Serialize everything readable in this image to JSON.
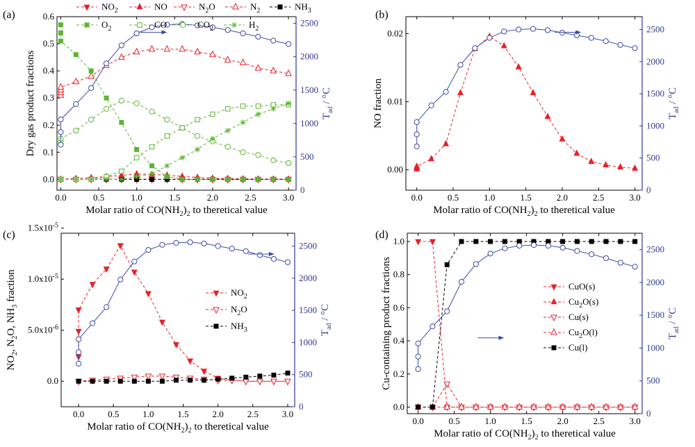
{
  "chart_data": [
    {
      "panel": "(a)",
      "type": "line",
      "xlabel": "Molar ratio of CO(NH2)2 to theretical value",
      "ylabel": "Dry gas product fractions",
      "y2label": "Tad / °C",
      "xlim": [
        -0.05,
        3.1
      ],
      "ylim": [
        -0.04,
        0.6
      ],
      "y2lim": [
        0,
        2600
      ],
      "xticks": [
        "0.0",
        "0.5",
        "1.0",
        "1.5",
        "2.0",
        "2.5",
        "3.0"
      ],
      "yticks": [
        "0.0",
        "0.1",
        "0.2",
        "0.3",
        "0.4",
        "0.5",
        "0.6"
      ],
      "y2ticks": [
        "0",
        "500",
        "1000",
        "1500",
        "2000",
        "2500"
      ],
      "series": [
        {
          "name": "NO2",
          "color": "#e8202a",
          "marker": "tri-down-filled",
          "x": [
            0,
            0.2,
            0.4,
            0.6,
            0.8,
            1.0,
            1.2,
            1.4,
            1.6,
            1.8,
            2.0,
            2.2,
            2.4,
            2.6,
            2.8,
            3.0
          ],
          "values": [
            0.0,
            0.0,
            0.0,
            0.0,
            0.0,
            0.0,
            0.0,
            0.0,
            0.0,
            0.0,
            0.0,
            0.0,
            0.0,
            0.0,
            0.0,
            0.0
          ]
        },
        {
          "name": "NO",
          "color": "#e8202a",
          "marker": "tri-up-filled",
          "x": [
            0,
            0.2,
            0.4,
            0.6,
            0.8,
            1.0,
            1.2,
            1.4,
            1.6,
            1.8,
            2.0,
            2.2,
            2.4,
            2.6,
            2.8,
            3.0
          ],
          "values": [
            0.001,
            0.003,
            0.006,
            0.01,
            0.015,
            0.02,
            0.018,
            0.015,
            0.011,
            0.007,
            0.004,
            0.003,
            0.002,
            0.001,
            0.001,
            0.001
          ]
        },
        {
          "name": "N2O",
          "color": "#e8202a",
          "marker": "tri-down-open",
          "x": [
            0,
            0.2,
            0.4,
            0.6,
            0.8,
            1.0,
            1.2,
            1.4,
            1.6,
            1.8,
            2.0,
            2.2,
            2.4,
            2.6,
            2.8,
            3.0
          ],
          "values": [
            0.0,
            0.0,
            0.0,
            0.0,
            0.0,
            0.0,
            0.0,
            0.0,
            0.0,
            0.0,
            0.0,
            0.0,
            0.0,
            0.0,
            0.0,
            0.0
          ]
        },
        {
          "name": "N2",
          "color": "#e8202a",
          "marker": "tri-up-open",
          "x": [
            0,
            0,
            0,
            0,
            0.2,
            0.4,
            0.6,
            0.8,
            1.0,
            1.2,
            1.4,
            1.6,
            1.8,
            2.0,
            2.2,
            2.4,
            2.6,
            2.8,
            3.0
          ],
          "values": [
            0.31,
            0.32,
            0.33,
            0.34,
            0.36,
            0.38,
            0.42,
            0.45,
            0.47,
            0.48,
            0.48,
            0.48,
            0.47,
            0.46,
            0.44,
            0.43,
            0.41,
            0.4,
            0.39
          ]
        },
        {
          "name": "NH3",
          "color": "#000000",
          "marker": "square-filled",
          "x": [
            0,
            0.2,
            0.4,
            0.6,
            0.8,
            1.0,
            1.2,
            1.4,
            1.6,
            1.8,
            2.0,
            2.2,
            2.4,
            2.6,
            2.8,
            3.0
          ],
          "values": [
            0.0,
            0.0,
            0.0,
            0.0,
            0.0,
            0.0,
            0.0,
            0.0,
            0.0,
            0.0,
            0.0,
            0.0,
            0.0,
            0.0,
            0.0,
            0.0
          ]
        },
        {
          "name": "O2",
          "color": "#5cb531",
          "marker": "square-filled",
          "x": [
            0,
            0,
            0,
            0.2,
            0.4,
            0.6,
            0.8,
            1.0,
            1.2,
            1.4,
            1.6,
            1.8,
            2.0,
            2.2,
            2.4,
            2.6,
            2.8,
            3.0
          ],
          "values": [
            0.57,
            0.54,
            0.51,
            0.46,
            0.4,
            0.3,
            0.21,
            0.11,
            0.05,
            0.01,
            0.0,
            0.0,
            0.0,
            0.0,
            0.0,
            0.0,
            0.0,
            0.0
          ]
        },
        {
          "name": "CO",
          "color": "#5cb531",
          "marker": "square-open",
          "x": [
            0,
            0.2,
            0.4,
            0.6,
            0.8,
            1.0,
            1.2,
            1.4,
            1.6,
            1.8,
            2.0,
            2.2,
            2.4,
            2.6,
            2.8,
            3.0
          ],
          "values": [
            0.0,
            0.0,
            0.0,
            0.01,
            0.03,
            0.08,
            0.12,
            0.16,
            0.19,
            0.22,
            0.24,
            0.26,
            0.27,
            0.27,
            0.275,
            0.275
          ]
        },
        {
          "name": "CO2",
          "color": "#5cb531",
          "marker": "circle-open",
          "x": [
            0,
            0,
            0,
            0.2,
            0.4,
            0.6,
            0.8,
            1.0,
            1.2,
            1.4,
            1.6,
            1.8,
            2.0,
            2.2,
            2.4,
            2.6,
            2.8,
            3.0
          ],
          "values": [
            0.13,
            0.14,
            0.15,
            0.18,
            0.22,
            0.26,
            0.29,
            0.28,
            0.25,
            0.22,
            0.19,
            0.16,
            0.14,
            0.12,
            0.1,
            0.09,
            0.07,
            0.06
          ]
        },
        {
          "name": "H2",
          "color": "#5cb531",
          "marker": "asterisk",
          "x": [
            0,
            0.2,
            0.4,
            0.6,
            0.8,
            1.0,
            1.2,
            1.4,
            1.6,
            1.8,
            2.0,
            2.2,
            2.4,
            2.6,
            2.8,
            3.0
          ],
          "values": [
            0.0,
            0.0,
            0.0,
            0.0,
            0.0,
            0.01,
            0.02,
            0.05,
            0.08,
            0.11,
            0.15,
            0.18,
            0.21,
            0.24,
            0.26,
            0.28
          ]
        },
        {
          "name": "Tad",
          "axis": "right",
          "color": "#3a4aa6",
          "marker": "circle-open",
          "x": [
            0,
            0,
            0,
            0.2,
            0.4,
            0.6,
            0.8,
            1.0,
            1.2,
            1.4,
            1.6,
            1.8,
            2.0,
            2.2,
            2.4,
            2.6,
            2.8,
            3.0
          ],
          "values": [
            680,
            870,
            1060,
            1290,
            1530,
            1900,
            2170,
            2350,
            2440,
            2480,
            2490,
            2470,
            2440,
            2400,
            2350,
            2300,
            2240,
            2190
          ]
        }
      ],
      "annotation": "arrow pointing to right axis"
    },
    {
      "panel": "(b)",
      "type": "line",
      "xlabel": "Molar ratio of CO(NH2)2 to theretical value",
      "ylabel": "NO fraction",
      "y2label": "Tad / °C",
      "xlim": [
        -0.15,
        3.1
      ],
      "ylim": [
        -0.003,
        0.0225
      ],
      "y2lim": [
        0,
        2700
      ],
      "xticks": [
        "0.0",
        "0.5",
        "1.0",
        "1.5",
        "2.0",
        "2.5",
        "3.0"
      ],
      "yticks": [
        "0.00",
        "0.01",
        "0.02"
      ],
      "y2ticks": [
        "0",
        "500",
        "1000",
        "1500",
        "2000",
        "2500"
      ],
      "series": [
        {
          "name": "NO",
          "color": "#e8202a",
          "marker": "tri-up-filled",
          "x": [
            0,
            0,
            0,
            0.2,
            0.4,
            0.6,
            0.8,
            1.0,
            1.2,
            1.4,
            1.6,
            1.8,
            2.0,
            2.2,
            2.4,
            2.6,
            2.8,
            3.0
          ],
          "values": [
            0.0001,
            0.0003,
            0.0005,
            0.0016,
            0.0038,
            0.0113,
            0.0178,
            0.0196,
            0.0182,
            0.0151,
            0.0113,
            0.0078,
            0.0045,
            0.0024,
            0.0012,
            0.0007,
            0.0004,
            0.0002
          ]
        },
        {
          "name": "Tad",
          "axis": "right",
          "color": "#3a4aa6",
          "marker": "circle-open",
          "x": [
            0,
            0,
            0,
            0.2,
            0.4,
            0.6,
            0.8,
            1.0,
            1.2,
            1.4,
            1.6,
            1.8,
            2.0,
            2.2,
            2.4,
            2.6,
            2.8,
            3.0
          ],
          "values": [
            680,
            870,
            1060,
            1320,
            1530,
            1950,
            2210,
            2370,
            2470,
            2500,
            2510,
            2490,
            2450,
            2410,
            2370,
            2320,
            2260,
            2210
          ]
        }
      ]
    },
    {
      "panel": "(c)",
      "type": "line",
      "xlabel": "Molar ratio of CO(NH2)2 to theretical value",
      "ylabel": "NO2, N2O, NH3 fraction",
      "y2label": "Tad / °C",
      "xlim": [
        -0.25,
        3.1
      ],
      "ylim": [
        -2.5e-06,
        1.45e-05
      ],
      "y2lim": [
        0,
        2700
      ],
      "xticks": [
        "0.0",
        "0.5",
        "1.0",
        "1.5",
        "2.0",
        "2.5",
        "3.0"
      ],
      "yticks": [
        "0.0",
        "5.0x10-6",
        "1.0x10-5",
        "1.5x10-5"
      ],
      "y2ticks": [
        "0",
        "500",
        "1000",
        "1500",
        "2000",
        "2500"
      ],
      "legend": [
        "NO2",
        "N2O",
        "NH3"
      ],
      "series": [
        {
          "name": "NO2",
          "color": "#e8202a",
          "marker": "tri-down-filled",
          "x": [
            0,
            0,
            0,
            0.2,
            0.4,
            0.6,
            0.8,
            1.0,
            1.2,
            1.4,
            1.6,
            1.8,
            2.0,
            2.2,
            2.4,
            2.6,
            2.8,
            3.0
          ],
          "values": [
            2.4e-06,
            4.9e-06,
            7e-06,
            9.5e-06,
            1.1e-05,
            1.33e-05,
            1.07e-05,
            8.6e-06,
            5.8e-06,
            3.6e-06,
            2e-06,
            1e-06,
            3e-07,
            1e-07,
            0,
            0,
            0,
            0
          ]
        },
        {
          "name": "N2O",
          "color": "#e8202a",
          "marker": "tri-down-open",
          "x": [
            0,
            0.2,
            0.4,
            0.6,
            0.8,
            1.0,
            1.2,
            1.4,
            1.6,
            1.8,
            2.0,
            2.2,
            2.4,
            2.6,
            2.8,
            3.0
          ],
          "values": [
            0,
            1e-07,
            2e-07,
            3e-07,
            4e-07,
            5e-07,
            5e-07,
            4e-07,
            3e-07,
            2e-07,
            1e-07,
            1e-07,
            0,
            0,
            0,
            0
          ]
        },
        {
          "name": "NH3",
          "color": "#000000",
          "marker": "square-filled",
          "x": [
            0,
            0.2,
            0.4,
            0.6,
            0.8,
            1.0,
            1.2,
            1.4,
            1.6,
            1.8,
            2.0,
            2.2,
            2.4,
            2.6,
            2.8,
            3.0
          ],
          "values": [
            0,
            0,
            0,
            0,
            0,
            0,
            0,
            1e-07,
            1e-07,
            1e-07,
            2e-07,
            3e-07,
            4e-07,
            5e-07,
            6e-07,
            8e-07
          ]
        },
        {
          "name": "Tad",
          "axis": "right",
          "color": "#3a4aa6",
          "marker": "circle-open",
          "x": [
            0,
            0,
            0,
            0.2,
            0.4,
            0.6,
            0.8,
            1.0,
            1.2,
            1.4,
            1.6,
            1.8,
            2.0,
            2.2,
            2.4,
            2.6,
            2.8,
            3.0
          ],
          "values": [
            670,
            850,
            1050,
            1300,
            1550,
            1980,
            2260,
            2440,
            2520,
            2550,
            2560,
            2540,
            2500,
            2460,
            2420,
            2360,
            2300,
            2250
          ]
        }
      ]
    },
    {
      "panel": "(d)",
      "type": "line",
      "xlabel": "Molar ratio of CO(NH2)2 to theretical value",
      "ylabel": "Cu-containing product fractions",
      "y2label": "Tad / °C",
      "xlim": [
        -0.15,
        3.1
      ],
      "ylim": [
        -0.04,
        1.05
      ],
      "y2lim": [
        0,
        2750
      ],
      "xticks": [
        "0.0",
        "0.5",
        "1.0",
        "1.5",
        "2.0",
        "2.5",
        "3.0"
      ],
      "yticks": [
        "0.0",
        "0.2",
        "0.4",
        "0.6",
        "0.8",
        "1.0"
      ],
      "y2ticks": [
        "0",
        "500",
        "1000",
        "1500",
        "2000",
        "2500"
      ],
      "legend": [
        "CuO(s)",
        "Cu2O(s)",
        "Cu(s)",
        "Cu2O(l)",
        "Cu(l)"
      ],
      "series": [
        {
          "name": "CuO(s)",
          "color": "#e8202a",
          "marker": "tri-down-filled",
          "x": [
            0,
            0.2,
            0.4,
            0.6,
            0.8,
            1.0,
            1.2,
            1.4,
            1.6,
            1.8,
            2.0,
            2.2,
            2.4,
            2.6,
            2.8,
            3.0
          ],
          "values": [
            1.0,
            1.0,
            0,
            0,
            0,
            0,
            0,
            0,
            0,
            0,
            0,
            0,
            0,
            0,
            0,
            0
          ]
        },
        {
          "name": "Cu2O(s)",
          "color": "#e8202a",
          "marker": "tri-up-filled",
          "x": [
            0,
            0.2,
            0.4,
            0.6,
            0.8,
            1.0,
            1.2,
            1.4,
            1.6,
            1.8,
            2.0,
            2.2,
            2.4,
            2.6,
            2.8,
            3.0
          ],
          "values": [
            0,
            0,
            0,
            0,
            0,
            0,
            0,
            0,
            0,
            0,
            0,
            0,
            0,
            0,
            0,
            0
          ]
        },
        {
          "name": "Cu(s)",
          "color": "#e8202a",
          "marker": "tri-down-open",
          "x": [
            0,
            0.2,
            0.4,
            0.6,
            0.8,
            1.0,
            1.2,
            1.4,
            1.6,
            1.8,
            2.0,
            2.2,
            2.4,
            2.6,
            2.8,
            3.0
          ],
          "values": [
            0,
            0,
            0.14,
            0,
            0,
            0,
            0,
            0,
            0,
            0,
            0,
            0,
            0,
            0,
            0,
            0
          ]
        },
        {
          "name": "Cu2O(l)",
          "color": "#e8202a",
          "marker": "tri-up-open",
          "x": [
            0,
            0.2,
            0.4,
            0.6,
            0.8,
            1.0,
            1.2,
            1.4,
            1.6,
            1.8,
            2.0,
            2.2,
            2.4,
            2.6,
            2.8,
            3.0
          ],
          "values": [
            0,
            0,
            0,
            0,
            0,
            0,
            0,
            0,
            0,
            0,
            0,
            0,
            0,
            0,
            0,
            0
          ]
        },
        {
          "name": "Cu(l)",
          "color": "#000000",
          "marker": "square-filled",
          "x": [
            0,
            0.2,
            0.4,
            0.6,
            0.8,
            1.0,
            1.2,
            1.4,
            1.6,
            1.8,
            2.0,
            2.2,
            2.4,
            2.6,
            2.8,
            3.0
          ],
          "values": [
            0,
            0,
            0.86,
            1.0,
            1.0,
            1.0,
            1.0,
            1.0,
            1.0,
            1.0,
            1.0,
            1.0,
            1.0,
            1.0,
            1.0,
            1.0
          ]
        },
        {
          "name": "Tad",
          "axis": "right",
          "color": "#3a4aa6",
          "marker": "circle-open",
          "x": [
            0,
            0,
            0,
            0.2,
            0.4,
            0.6,
            0.8,
            1.0,
            1.2,
            1.4,
            1.6,
            1.8,
            2.0,
            2.2,
            2.4,
            2.6,
            2.8,
            3.0
          ],
          "values": [
            680,
            870,
            1070,
            1330,
            1560,
            2010,
            2280,
            2440,
            2520,
            2560,
            2570,
            2560,
            2530,
            2480,
            2430,
            2370,
            2300,
            2240
          ]
        }
      ]
    }
  ]
}
